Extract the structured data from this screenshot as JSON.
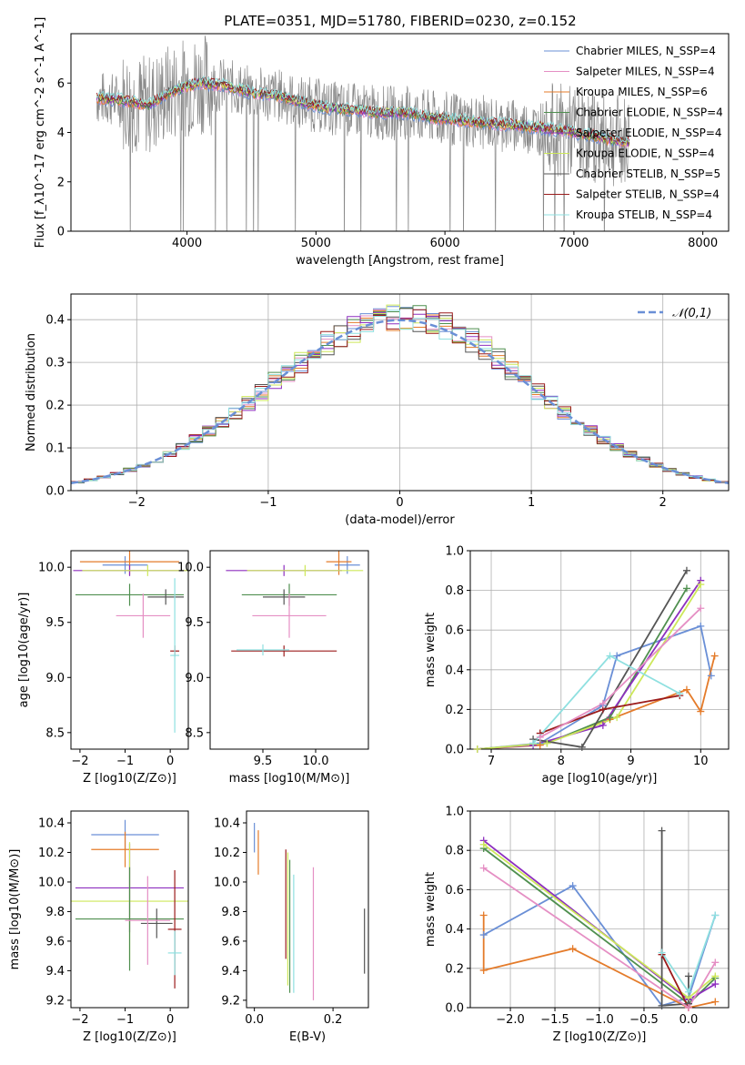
{
  "colors": {
    "blue": "#6a8fd6",
    "pink": "#e58fc4",
    "orange": "#e47b2a",
    "green": "#4f8f4f",
    "purple": "#8d2fbf",
    "yellow": "#cde85a",
    "dark": "#555555",
    "darkred": "#9b1c1c",
    "cyan": "#8fe0e0",
    "gray": "#888888"
  },
  "chart_data": [
    {
      "type": "line",
      "title": "PLATE=0351, MJD=51780, FIBERID=0230, z=0.152",
      "xlabel": "wavelength [Angstrom, rest frame]",
      "ylabel": "Flux [f_λ10^-17 erg cm^-2 s^-1 A^-1]",
      "xlim": [
        3100,
        8200
      ],
      "ylim": [
        0,
        8
      ],
      "xticks": [
        "4000",
        "5000",
        "6000",
        "7000",
        "8000"
      ],
      "yticks": [
        "0",
        "2",
        "4",
        "6"
      ],
      "legend_placement": "right",
      "series": [
        {
          "name": "Chabrier MILES, N_SSP=4",
          "color": "blue"
        },
        {
          "name": "Salpeter MILES, N_SSP=4",
          "color": "pink"
        },
        {
          "name": "Kroupa MILES, N_SSP=6",
          "color": "orange"
        },
        {
          "name": "Chabrier ELODIE, N_SSP=4",
          "color": "green"
        },
        {
          "name": "Salpeter ELODIE, N_SSP=4",
          "color": "purple"
        },
        {
          "name": "Kroupa ELODIE, N_SSP=4",
          "color": "yellow"
        },
        {
          "name": "Chabrier STELIB, N_SSP=5",
          "color": "dark"
        },
        {
          "name": "Salpeter STELIB, N_SSP=4",
          "color": "darkred"
        },
        {
          "name": "Kroupa STELIB, N_SSP=4",
          "color": "cyan"
        }
      ],
      "continuum": {
        "x": [
          3300,
          3500,
          3700,
          3900,
          4100,
          4300,
          4500,
          4700,
          4900,
          5100,
          5300,
          5500,
          5700,
          5900,
          6100,
          6300,
          6500,
          6700,
          6900,
          7100,
          7300,
          7500,
          7700,
          7900,
          8100
        ],
        "y": [
          5.4,
          5.3,
          5.1,
          5.7,
          6.0,
          5.9,
          5.6,
          5.5,
          5.2,
          5.0,
          4.9,
          4.8,
          4.8,
          4.6,
          4.5,
          4.4,
          4.3,
          4.2,
          4.1,
          3.9,
          3.7,
          3.5,
          3.3,
          3.1,
          3.0
        ]
      }
    },
    {
      "type": "bar",
      "xlabel": "(data-model)/error",
      "ylabel": "Normed distribution",
      "xlim": [
        -2.5,
        2.5
      ],
      "ylim": [
        0,
        0.46
      ],
      "xticks": [
        "−2",
        "−1",
        "0",
        "1",
        "2"
      ],
      "yticks": [
        "0.0",
        "0.1",
        "0.2",
        "0.3",
        "0.4"
      ],
      "legend": "𝒩(0,1)",
      "legend_placement": "top-right",
      "bin_width": 0.1
    },
    {
      "type": "scatter",
      "xlabel": "Z [log10(Z/Z⊙)]",
      "ylabel": "age  [log10(age/yr)]",
      "xlim": [
        -2.2,
        0.4
      ],
      "ylim": [
        8.35,
        10.15
      ],
      "xticks": [
        "−2",
        "−1",
        "0"
      ],
      "yticks": [
        "8.5",
        "9.0",
        "9.5",
        "10.0"
      ],
      "points": [
        {
          "x": -1.0,
          "xerr": 0.5,
          "y": 10.02,
          "yerr": 0.08,
          "color": "blue"
        },
        {
          "x": -0.9,
          "xerr": 1.1,
          "y": 10.05,
          "yerr": 0.12,
          "color": "orange"
        },
        {
          "x": -0.9,
          "xerr": 1.25,
          "y": 9.97,
          "yerr": 0.05,
          "color": "purple"
        },
        {
          "x": -0.5,
          "xerr": 1.45,
          "y": 9.97,
          "yerr": 0.05,
          "color": "yellow"
        },
        {
          "x": -0.9,
          "xerr": 1.2,
          "y": 9.75,
          "yerr": 0.1,
          "color": "green"
        },
        {
          "x": -0.1,
          "xerr": 0.4,
          "y": 9.73,
          "yerr": 0.07,
          "color": "dark"
        },
        {
          "x": -0.6,
          "xerr": 0.6,
          "y": 9.56,
          "yerr": 0.2,
          "color": "pink"
        },
        {
          "x": 0.1,
          "xerr": 0.1,
          "y": 9.24,
          "yerr": 0.05,
          "color": "darkred"
        },
        {
          "x": 0.1,
          "xerr": 0.1,
          "y": 9.2,
          "yerr": 0.7,
          "color": "cyan"
        }
      ]
    },
    {
      "type": "scatter",
      "xlabel": "mass [log10(M/M⊙)]",
      "ylabel": "",
      "xlim": [
        9.0,
        10.5
      ],
      "ylim": [
        8.35,
        10.15
      ],
      "xticks": [
        "9.5",
        "10.0"
      ],
      "yticks": [
        "8.5",
        "9.0",
        "9.5",
        "10.0"
      ],
      "points": [
        {
          "x": 10.3,
          "xerr": 0.12,
          "y": 10.02,
          "yerr": 0.08,
          "color": "blue"
        },
        {
          "x": 10.22,
          "xerr": 0.12,
          "y": 10.05,
          "yerr": 0.12,
          "color": "orange"
        },
        {
          "x": 9.7,
          "xerr": 0.55,
          "y": 9.97,
          "yerr": 0.05,
          "color": "purple"
        },
        {
          "x": 9.9,
          "xerr": 0.55,
          "y": 9.97,
          "yerr": 0.05,
          "color": "yellow"
        },
        {
          "x": 9.75,
          "xerr": 0.45,
          "y": 9.75,
          "yerr": 0.1,
          "color": "green"
        },
        {
          "x": 9.7,
          "xerr": 0.2,
          "y": 9.73,
          "yerr": 0.07,
          "color": "dark"
        },
        {
          "x": 9.75,
          "xerr": 0.35,
          "y": 9.56,
          "yerr": 0.2,
          "color": "pink"
        },
        {
          "x": 9.7,
          "xerr": 0.5,
          "y": 9.24,
          "yerr": 0.05,
          "color": "darkred"
        },
        {
          "x": 9.5,
          "xerr": 0.25,
          "y": 9.25,
          "yerr": 0.05,
          "color": "cyan"
        }
      ]
    },
    {
      "type": "line",
      "xlabel": "age  [log10(age/yr)]",
      "ylabel": "mass weight",
      "xlim": [
        6.7,
        10.4
      ],
      "ylim": [
        0,
        1.0
      ],
      "xticks": [
        "7",
        "8",
        "9",
        "10"
      ],
      "yticks": [
        "0.0",
        "0.2",
        "0.4",
        "0.6",
        "0.8",
        "1.0"
      ],
      "grid": true,
      "series": [
        {
          "color": "blue",
          "x": [
            6.8,
            7.7,
            8.6,
            8.8,
            10.0,
            10.15
          ],
          "y": [
            0.0,
            0.03,
            0.22,
            0.47,
            0.62,
            0.37
          ]
        },
        {
          "color": "orange",
          "x": [
            6.8,
            7.7,
            8.7,
            9.8,
            10.0,
            10.2
          ],
          "y": [
            0.0,
            0.02,
            0.15,
            0.3,
            0.19,
            0.47
          ]
        },
        {
          "color": "green",
          "x": [
            6.8,
            7.8,
            8.7,
            9.8
          ],
          "y": [
            0.0,
            0.03,
            0.16,
            0.81
          ]
        },
        {
          "color": "purple",
          "x": [
            6.8,
            7.6,
            8.6,
            10.0
          ],
          "y": [
            0.0,
            0.02,
            0.12,
            0.85
          ]
        },
        {
          "color": "yellow",
          "x": [
            6.8,
            7.8,
            8.8,
            10.0
          ],
          "y": [
            0.0,
            0.03,
            0.16,
            0.83
          ]
        },
        {
          "color": "dark",
          "x": [
            7.6,
            8.3,
            9.8
          ],
          "y": [
            0.05,
            0.01,
            0.9
          ]
        },
        {
          "color": "darkred",
          "x": [
            7.7,
            8.6,
            9.7
          ],
          "y": [
            0.08,
            0.2,
            0.27
          ]
        },
        {
          "color": "cyan",
          "x": [
            7.6,
            8.7,
            9.7
          ],
          "y": [
            0.03,
            0.47,
            0.28
          ]
        },
        {
          "color": "pink",
          "x": [
            7.7,
            8.6,
            10.0
          ],
          "y": [
            0.06,
            0.23,
            0.71
          ]
        }
      ]
    },
    {
      "type": "scatter",
      "xlabel": "Z [log10(Z/Z⊙)]",
      "ylabel": "mass [log10(M/M⊙)]",
      "xlim": [
        -2.2,
        0.4
      ],
      "ylim": [
        9.15,
        10.48
      ],
      "xticks": [
        "−2",
        "−1",
        "0"
      ],
      "yticks": [
        "9.2",
        "9.4",
        "9.6",
        "9.8",
        "10.0",
        "10.2",
        "10.4"
      ],
      "points": [
        {
          "x": -1.0,
          "xerr": 0.75,
          "y": 10.32,
          "yerr": 0.1,
          "color": "blue"
        },
        {
          "x": -1.0,
          "xerr": 0.75,
          "y": 10.22,
          "yerr": 0.12,
          "color": "orange"
        },
        {
          "x": -0.9,
          "xerr": 1.2,
          "y": 9.96,
          "yerr": 0.3,
          "color": "purple"
        },
        {
          "x": -0.9,
          "xerr": 1.4,
          "y": 9.87,
          "yerr": 0.4,
          "color": "yellow"
        },
        {
          "x": -0.9,
          "xerr": 1.2,
          "y": 9.75,
          "yerr": 0.35,
          "color": "green"
        },
        {
          "x": -0.3,
          "xerr": 0.35,
          "y": 9.72,
          "yerr": 0.1,
          "color": "dark"
        },
        {
          "x": -0.5,
          "xerr": 0.5,
          "y": 9.74,
          "yerr": 0.3,
          "color": "pink"
        },
        {
          "x": 0.1,
          "xerr": 0.15,
          "y": 9.68,
          "yerr": 0.4,
          "color": "darkred"
        },
        {
          "x": 0.1,
          "xerr": 0.15,
          "y": 9.52,
          "yerr": 0.15,
          "color": "cyan"
        }
      ]
    },
    {
      "type": "scatter",
      "xlabel": "E(B-V)",
      "ylabel": "",
      "xlim": [
        -0.02,
        0.29
      ],
      "ylim": [
        9.15,
        10.48
      ],
      "xticks": [
        "0.0",
        "0.2"
      ],
      "yticks": [
        "9.2",
        "9.4",
        "9.6",
        "9.8",
        "10.0",
        "10.2",
        "10.4"
      ],
      "points": [
        {
          "x": 0.0,
          "y": 10.3,
          "yerr": 0.1,
          "color": "blue"
        },
        {
          "x": 0.01,
          "y": 10.2,
          "yerr": 0.15,
          "color": "orange"
        },
        {
          "x": 0.08,
          "y": 9.85,
          "yerr": 0.37,
          "color": "darkred"
        },
        {
          "x": 0.085,
          "y": 9.75,
          "yerr": 0.45,
          "color": "yellow"
        },
        {
          "x": 0.09,
          "y": 9.7,
          "yerr": 0.45,
          "color": "green"
        },
        {
          "x": 0.1,
          "y": 9.65,
          "yerr": 0.4,
          "color": "cyan"
        },
        {
          "x": 0.15,
          "y": 9.65,
          "yerr": 0.45,
          "color": "pink"
        },
        {
          "x": 0.28,
          "y": 9.6,
          "yerr": 0.22,
          "color": "dark"
        }
      ]
    },
    {
      "type": "line",
      "xlabel": "Z [log10(Z/Z⊙)]",
      "ylabel": "mass weight",
      "xlim": [
        -2.45,
        0.45
      ],
      "ylim": [
        0,
        1.0
      ],
      "xticks": [
        "−2.0",
        "−1.5",
        "−1.0",
        "−0.5",
        "0.0"
      ],
      "yticks": [
        "0.0",
        "0.2",
        "0.4",
        "0.6",
        "0.8",
        "1.0"
      ],
      "grid": true,
      "series": [
        {
          "color": "blue",
          "x": [
            -2.3,
            -1.3,
            -0.3,
            0.0,
            0.3
          ],
          "y": [
            0.37,
            0.62,
            0.01,
            0.05,
            0.47
          ]
        },
        {
          "color": "orange",
          "x": [
            -2.3,
            -2.3,
            -1.3,
            0.0,
            0.3
          ],
          "y": [
            0.47,
            0.19,
            0.3,
            0.0,
            0.03
          ]
        },
        {
          "color": "green",
          "x": [
            -2.3,
            0.0,
            0.3
          ],
          "y": [
            0.81,
            0.02,
            0.15
          ]
        },
        {
          "color": "purple",
          "x": [
            -2.3,
            0.0,
            0.3
          ],
          "y": [
            0.85,
            0.04,
            0.12
          ]
        },
        {
          "color": "yellow",
          "x": [
            -2.3,
            0.0,
            0.3
          ],
          "y": [
            0.83,
            0.05,
            0.16
          ]
        },
        {
          "color": "dark",
          "x": [
            -0.3,
            -0.3,
            0.0,
            0.0
          ],
          "y": [
            0.9,
            0.01,
            0.02,
            0.16
          ]
        },
        {
          "color": "darkred",
          "x": [
            -0.3,
            0.0
          ],
          "y": [
            0.27,
            0.0
          ]
        },
        {
          "color": "cyan",
          "x": [
            -0.3,
            0.0,
            0.3
          ],
          "y": [
            0.28,
            0.08,
            0.47
          ]
        },
        {
          "color": "pink",
          "x": [
            -2.3,
            0.0,
            0.3
          ],
          "y": [
            0.71,
            0.0,
            0.23
          ]
        }
      ]
    }
  ]
}
